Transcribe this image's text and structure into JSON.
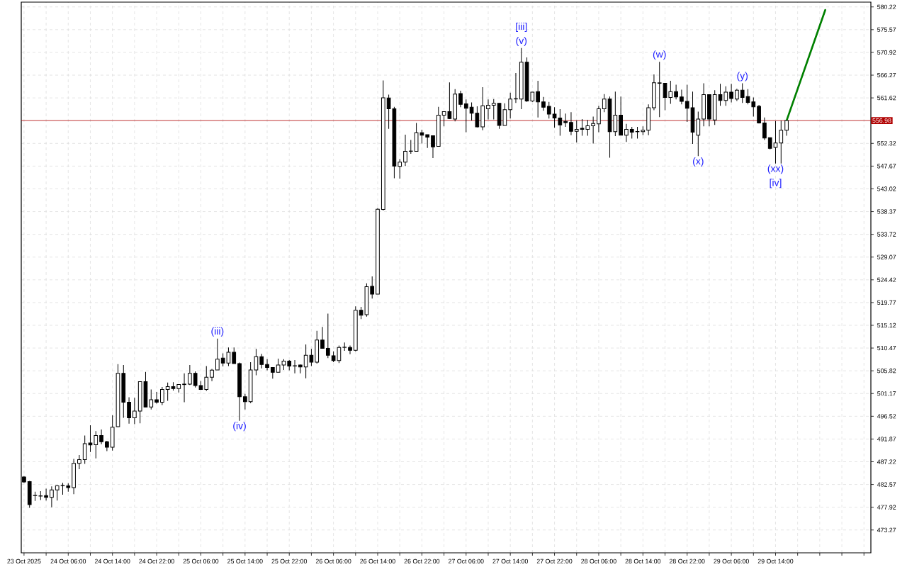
{
  "chart_data": {
    "type": "candlestick",
    "color": "#000000",
    "x": [
      "2025-10-23T22:00",
      "2025-10-23T23:00",
      "2025-10-24T00:00",
      "2025-10-24T01:00",
      "2025-10-24T02:00",
      "2025-10-24T03:00",
      "2025-10-24T04:00",
      "2025-10-24T05:00",
      "2025-10-24T06:00",
      "2025-10-24T07:00",
      "2025-10-24T08:00",
      "2025-10-24T09:00",
      "2025-10-24T10:00",
      "2025-10-24T11:00",
      "2025-10-24T12:00",
      "2025-10-24T13:00",
      "2025-10-24T14:00",
      "2025-10-24T15:00",
      "2025-10-24T16:00",
      "2025-10-24T17:00",
      "2025-10-24T18:00",
      "2025-10-24T19:00",
      "2025-10-24T20:00",
      "2025-10-24T21:00",
      "2025-10-24T22:00",
      "2025-10-24T23:00",
      "2025-10-25T00:00",
      "2025-10-25T01:00",
      "2025-10-25T02:00",
      "2025-10-25T03:00",
      "2025-10-25T04:00",
      "2025-10-25T05:00",
      "2025-10-25T06:00",
      "2025-10-25T07:00",
      "2025-10-25T08:00",
      "2025-10-25T09:00",
      "2025-10-25T10:00",
      "2025-10-25T11:00",
      "2025-10-25T12:00",
      "2025-10-25T13:00",
      "2025-10-25T14:00",
      "2025-10-25T15:00",
      "2025-10-25T16:00",
      "2025-10-25T17:00",
      "2025-10-25T18:00",
      "2025-10-25T19:00",
      "2025-10-25T20:00",
      "2025-10-25T21:00",
      "2025-10-25T22:00",
      "2025-10-25T23:00",
      "2025-10-26T00:00",
      "2025-10-26T01:00",
      "2025-10-26T02:00",
      "2025-10-26T03:00",
      "2025-10-26T04:00",
      "2025-10-26T05:00",
      "2025-10-26T06:00",
      "2025-10-26T07:00",
      "2025-10-26T08:00",
      "2025-10-26T09:00",
      "2025-10-26T10:00",
      "2025-10-26T11:00",
      "2025-10-26T12:00",
      "2025-10-26T13:00",
      "2025-10-26T14:00",
      "2025-10-26T15:00",
      "2025-10-26T16:00",
      "2025-10-26T17:00",
      "2025-10-26T18:00",
      "2025-10-26T19:00",
      "2025-10-26T20:00",
      "2025-10-26T21:00",
      "2025-10-26T22:00",
      "2025-10-26T23:00",
      "2025-10-27T00:00",
      "2025-10-27T01:00",
      "2025-10-27T02:00",
      "2025-10-27T03:00",
      "2025-10-27T04:00",
      "2025-10-27T05:00",
      "2025-10-27T06:00",
      "2025-10-27T07:00",
      "2025-10-27T08:00",
      "2025-10-27T09:00",
      "2025-10-27T10:00",
      "2025-10-27T11:00",
      "2025-10-27T12:00",
      "2025-10-27T13:00",
      "2025-10-27T14:00",
      "2025-10-27T15:00",
      "2025-10-27T16:00",
      "2025-10-27T17:00",
      "2025-10-27T18:00",
      "2025-10-27T19:00",
      "2025-10-27T20:00",
      "2025-10-27T21:00",
      "2025-10-27T22:00",
      "2025-10-27T23:00",
      "2025-10-28T00:00",
      "2025-10-28T01:00",
      "2025-10-28T02:00",
      "2025-10-28T03:00",
      "2025-10-28T04:00",
      "2025-10-28T05:00",
      "2025-10-28T06:00",
      "2025-10-28T07:00",
      "2025-10-28T08:00",
      "2025-10-28T09:00",
      "2025-10-28T10:00",
      "2025-10-28T11:00",
      "2025-10-28T12:00",
      "2025-10-28T13:00",
      "2025-10-28T14:00",
      "2025-10-28T15:00",
      "2025-10-28T16:00",
      "2025-10-28T17:00",
      "2025-10-28T18:00",
      "2025-10-28T19:00",
      "2025-10-28T20:00",
      "2025-10-28T21:00",
      "2025-10-28T22:00",
      "2025-10-28T23:00",
      "2025-10-29T00:00",
      "2025-10-29T01:00",
      "2025-10-29T02:00",
      "2025-10-29T03:00",
      "2025-10-29T04:00",
      "2025-10-29T05:00",
      "2025-10-29T06:00",
      "2025-10-29T07:00",
      "2025-10-29T08:00",
      "2025-10-29T09:00",
      "2025-10-29T10:00",
      "2025-10-29T11:00",
      "2025-10-29T12:00",
      "2025-10-29T13:00",
      "2025-10-29T14:00",
      "2025-10-29T15:00",
      "2025-10-29T16:00"
    ],
    "ohlc": [
      [
        484.1,
        484.3,
        482.9,
        483.1
      ],
      [
        483.15,
        483.3,
        477.8,
        478.46
      ],
      [
        480.3,
        481.1,
        479.2,
        480.35
      ],
      [
        480.2,
        481.2,
        479.4,
        480.25
      ],
      [
        480.3,
        481.7,
        479.3,
        479.95
      ],
      [
        479.95,
        482.2,
        477.9,
        481.45
      ],
      [
        481.45,
        482.4,
        479.3,
        482.3
      ],
      [
        482.3,
        482.9,
        480.5,
        482.35
      ],
      [
        482.3,
        482.8,
        481.1,
        481.95
      ],
      [
        481.95,
        487.8,
        480.6,
        486.9
      ],
      [
        486.9,
        488.6,
        485.7,
        487.65
      ],
      [
        487.65,
        492.6,
        486.8,
        490.9
      ],
      [
        491.05,
        494.7,
        489.2,
        490.65
      ],
      [
        490.7,
        493.5,
        487.9,
        492.6
      ],
      [
        492.6,
        493.8,
        490.8,
        491.3
      ],
      [
        491.3,
        491.5,
        489.4,
        490.2
      ],
      [
        490.2,
        496.7,
        489.5,
        494.3
      ],
      [
        494.4,
        507.2,
        494.3,
        505.3
      ],
      [
        505.3,
        507.0,
        496.2,
        499.4
      ],
      [
        499.4,
        500.4,
        495.0,
        496.2
      ],
      [
        496.2,
        500.3,
        494.9,
        497.6
      ],
      [
        497.6,
        503.6,
        495.1,
        503.6
      ],
      [
        503.6,
        505.6,
        498.4,
        498.4
      ],
      [
        498.4,
        502.0,
        497.9,
        499.9
      ],
      [
        499.9,
        501.5,
        499.1,
        499.4
      ],
      [
        499.4,
        502.5,
        498.8,
        502.0
      ],
      [
        502.0,
        503.4,
        499.7,
        502.6
      ],
      [
        502.6,
        503.5,
        501.8,
        502.2
      ],
      [
        502.2,
        503.0,
        501.4,
        503.0
      ],
      [
        503.0,
        505.3,
        499.4,
        503.1
      ],
      [
        503.1,
        507.0,
        502.9,
        505.3
      ],
      [
        505.3,
        505.7,
        502.4,
        502.8
      ],
      [
        502.8,
        503.7,
        501.9,
        502.0
      ],
      [
        502.0,
        506.8,
        501.7,
        504.5
      ],
      [
        504.5,
        506.2,
        503.7,
        505.95
      ],
      [
        506.0,
        512.4,
        506.0,
        508.2
      ],
      [
        508.4,
        509.4,
        506.7,
        507.4
      ],
      [
        507.4,
        510.6,
        506.8,
        509.6
      ],
      [
        509.6,
        510.6,
        507.3,
        507.3
      ],
      [
        507.3,
        507.5,
        495.6,
        500.5
      ],
      [
        500.5,
        501.1,
        497.9,
        499.5
      ],
      [
        499.5,
        507.6,
        499.2,
        506.0
      ],
      [
        506.0,
        510.3,
        504.9,
        508.7
      ],
      [
        508.7,
        509.3,
        506.3,
        507.1
      ],
      [
        507.1,
        508.2,
        505.9,
        506.5
      ],
      [
        506.5,
        506.5,
        504.2,
        505.5
      ],
      [
        505.5,
        508.3,
        505.5,
        507.0
      ],
      [
        507.0,
        508.2,
        506.0,
        507.8
      ],
      [
        507.8,
        508.0,
        505.9,
        506.8
      ],
      [
        506.8,
        508.0,
        505.3,
        506.85
      ],
      [
        507.0,
        507.1,
        505.3,
        506.6
      ],
      [
        506.6,
        511.2,
        504.3,
        509.0
      ],
      [
        509.0,
        510.3,
        506.8,
        507.6
      ],
      [
        507.6,
        514.0,
        507.3,
        512.1
      ],
      [
        512.1,
        514.8,
        510.4,
        510.4
      ],
      [
        510.4,
        517.5,
        508.4,
        509.0
      ],
      [
        508.9,
        509.8,
        507.6,
        507.9
      ],
      [
        507.9,
        511.0,
        507.4,
        510.6
      ],
      [
        510.6,
        511.6,
        509.9,
        510.65
      ],
      [
        510.6,
        511.0,
        509.2,
        510.0
      ],
      [
        510.0,
        519.0,
        509.8,
        518.2
      ],
      [
        518.2,
        518.9,
        516.4,
        517.2
      ],
      [
        517.3,
        523.7,
        516.9,
        523.0
      ],
      [
        523.1,
        525.1,
        520.6,
        521.5
      ],
      [
        521.5,
        539.1,
        521.5,
        538.85
      ],
      [
        538.8,
        565.2,
        538.6,
        561.62
      ],
      [
        561.6,
        562.3,
        555.3,
        559.4
      ],
      [
        559.4,
        559.8,
        545.2,
        547.67
      ],
      [
        547.6,
        549.1,
        545.1,
        548.5
      ],
      [
        548.5,
        554.1,
        547.7,
        550.7
      ],
      [
        550.7,
        553.0,
        550.2,
        550.75
      ],
      [
        550.7,
        556.5,
        550.7,
        554.5
      ],
      [
        554.5,
        555.1,
        552.3,
        554.0
      ],
      [
        554.1,
        554.1,
        551.4,
        553.6
      ],
      [
        553.9,
        553.9,
        549.3,
        551.6
      ],
      [
        551.7,
        559.8,
        551.7,
        558.1
      ],
      [
        558.1,
        558.8,
        555.8,
        558.8
      ],
      [
        558.8,
        564.8,
        557.3,
        557.4
      ],
      [
        557.3,
        563.4,
        556.8,
        562.4
      ],
      [
        562.5,
        563.1,
        559.7,
        560.3
      ],
      [
        560.4,
        561.3,
        554.6,
        559.5
      ],
      [
        559.7,
        560.7,
        557.0,
        558.5
      ],
      [
        558.5,
        559.9,
        555.6,
        555.7
      ],
      [
        555.7,
        563.8,
        555.0,
        560.0
      ],
      [
        559.4,
        561.3,
        557.2,
        560.1
      ],
      [
        560.1,
        561.4,
        557.2,
        560.5
      ],
      [
        560.5,
        560.5,
        555.3,
        556.0
      ],
      [
        556.0,
        560.5,
        556.0,
        559.2
      ],
      [
        559.2,
        562.7,
        557.4,
        561.4
      ],
      [
        561.4,
        566.7,
        560.6,
        561.45
      ],
      [
        561.4,
        571.8,
        559.3,
        568.9
      ],
      [
        568.9,
        569.9,
        560.8,
        561.0
      ],
      [
        561.0,
        562.8,
        560.8,
        562.8
      ],
      [
        562.9,
        565.1,
        557.6,
        560.8
      ],
      [
        560.8,
        561.8,
        559.0,
        559.7
      ],
      [
        559.9,
        560.8,
        557.4,
        558.3
      ],
      [
        558.3,
        559.7,
        555.5,
        557.5
      ],
      [
        557.5,
        559.3,
        553.9,
        556.1
      ],
      [
        556.8,
        558.4,
        555.7,
        556.55
      ],
      [
        556.6,
        558.7,
        554.0,
        554.8
      ],
      [
        554.8,
        557.0,
        552.5,
        555.2
      ],
      [
        555.4,
        557.3,
        553.9,
        555.2
      ],
      [
        555.2,
        557.1,
        553.9,
        555.9
      ],
      [
        555.9,
        557.8,
        552.3,
        556.4
      ],
      [
        556.3,
        560.0,
        554.6,
        559.4
      ],
      [
        559.4,
        562.4,
        558.7,
        561.4
      ],
      [
        561.4,
        561.9,
        549.4,
        554.7
      ],
      [
        554.7,
        562.9,
        553.8,
        558.1
      ],
      [
        558.1,
        561.9,
        554.0,
        554.0
      ],
      [
        554.0,
        556.3,
        552.6,
        555.2
      ],
      [
        555.2,
        555.7,
        553.3,
        554.6
      ],
      [
        554.7,
        555.7,
        553.3,
        554.75
      ],
      [
        554.7,
        555.8,
        554.0,
        555.0
      ],
      [
        555.0,
        560.3,
        554.0,
        559.6
      ],
      [
        559.6,
        566.4,
        559.1,
        564.7
      ],
      [
        564.6,
        569.0,
        557.7,
        564.7
      ],
      [
        564.6,
        564.6,
        559.1,
        561.7
      ],
      [
        561.7,
        565.1,
        560.4,
        562.9
      ],
      [
        562.9,
        564.3,
        561.3,
        561.8
      ],
      [
        561.8,
        563.3,
        560.3,
        560.9
      ],
      [
        560.9,
        564.3,
        556.7,
        559.5
      ],
      [
        559.6,
        562.9,
        552.2,
        554.6
      ],
      [
        554.0,
        558.8,
        549.7,
        557.3
      ],
      [
        557.3,
        564.6,
        555.8,
        562.3
      ],
      [
        562.3,
        562.3,
        555.8,
        557.3
      ],
      [
        557.1,
        563.2,
        556.1,
        562.3
      ],
      [
        562.3,
        564.5,
        560.0,
        561.1
      ],
      [
        561.1,
        564.0,
        560.0,
        562.8
      ],
      [
        562.8,
        564.5,
        560.7,
        561.5
      ],
      [
        561.4,
        563.5,
        561.0,
        563.2
      ],
      [
        563.2,
        564.6,
        560.6,
        561.7
      ],
      [
        561.9,
        563.4,
        560.3,
        560.7
      ],
      [
        560.8,
        561.7,
        557.8,
        559.8
      ],
      [
        559.9,
        560.2,
        556.4,
        556.5
      ],
      [
        556.5,
        557.6,
        553.0,
        553.4
      ],
      [
        553.5,
        553.5,
        551.1,
        551.3
      ],
      [
        551.5,
        556.9,
        548.2,
        552.4
      ],
      [
        552.4,
        557.0,
        548.2,
        555.0
      ],
      [
        555.0,
        556.98,
        553.9,
        556.98
      ]
    ],
    "series": [
      {
        "type": "line",
        "color": "#008000",
        "x": [
          "2025-10-29T16:00",
          "2025-10-29T23:00"
        ],
        "values": [
          556.98,
          579.6
        ]
      }
    ],
    "xlim": [
      "2025-10-23T21:30",
      "2025-10-30T07:15"
    ],
    "xticks": [
      {
        "value": "2025-10-23T22:00",
        "label": "23 Oct 2025"
      },
      {
        "value": "2025-10-24T02:00",
        "label": null
      },
      {
        "value": "2025-10-24T06:00",
        "label": "24 Oct 06:00"
      },
      {
        "value": "2025-10-24T10:00",
        "label": null
      },
      {
        "value": "2025-10-24T14:00",
        "label": "24 Oct 14:00"
      },
      {
        "value": "2025-10-24T18:00",
        "label": null
      },
      {
        "value": "2025-10-24T22:00",
        "label": "24 Oct 22:00"
      },
      {
        "value": "2025-10-25T02:00",
        "label": null
      },
      {
        "value": "2025-10-25T06:00",
        "label": "25 Oct 06:00"
      },
      {
        "value": "2025-10-25T10:00",
        "label": null
      },
      {
        "value": "2025-10-25T14:00",
        "label": "25 Oct 14:00"
      },
      {
        "value": "2025-10-25T18:00",
        "label": null
      },
      {
        "value": "2025-10-25T22:00",
        "label": "25 Oct 22:00"
      },
      {
        "value": "2025-10-26T02:00",
        "label": null
      },
      {
        "value": "2025-10-26T06:00",
        "label": "26 Oct 06:00"
      },
      {
        "value": "2025-10-26T10:00",
        "label": null
      },
      {
        "value": "2025-10-26T14:00",
        "label": "26 Oct 14:00"
      },
      {
        "value": "2025-10-26T18:00",
        "label": null
      },
      {
        "value": "2025-10-26T22:00",
        "label": "26 Oct 22:00"
      },
      {
        "value": "2025-10-27T02:00",
        "label": null
      },
      {
        "value": "2025-10-27T06:00",
        "label": "27 Oct 06:00"
      },
      {
        "value": "2025-10-27T10:00",
        "label": null
      },
      {
        "value": "2025-10-27T14:00",
        "label": "27 Oct 14:00"
      },
      {
        "value": "2025-10-27T18:00",
        "label": null
      },
      {
        "value": "2025-10-27T22:00",
        "label": "27 Oct 22:00"
      },
      {
        "value": "2025-10-28T02:00",
        "label": null
      },
      {
        "value": "2025-10-28T06:00",
        "label": "28 Oct 06:00"
      },
      {
        "value": "2025-10-28T10:00",
        "label": null
      },
      {
        "value": "2025-10-28T14:00",
        "label": "28 Oct 14:00"
      },
      {
        "value": "2025-10-28T18:00",
        "label": null
      },
      {
        "value": "2025-10-28T22:00",
        "label": "28 Oct 22:00"
      },
      {
        "value": "2025-10-29T02:00",
        "label": null
      },
      {
        "value": "2025-10-29T06:00",
        "label": "29 Oct 06:00"
      },
      {
        "value": "2025-10-29T10:00",
        "label": null
      },
      {
        "value": "2025-10-29T14:00",
        "label": "29 Oct 14:00"
      },
      {
        "value": "2025-10-29T18:00",
        "label": null
      },
      {
        "value": "2025-10-29T22:00",
        "label": null
      },
      {
        "value": "2025-10-30T02:00",
        "label": null
      },
      {
        "value": "2025-10-30T06:00",
        "label": null
      }
    ],
    "ylim": [
      468.6,
      581.2
    ],
    "yticks": [
      473.27,
      477.92,
      482.57,
      487.22,
      491.87,
      496.52,
      501.17,
      505.82,
      510.47,
      515.12,
      519.77,
      524.42,
      529.07,
      533.72,
      538.37,
      543.02,
      547.67,
      552.32,
      561.62,
      566.27,
      570.92,
      575.57,
      580.22
    ],
    "grid": true,
    "ref_lines": [
      {
        "axis": "y",
        "value": 556.98,
        "label": "556.98",
        "color": "#b00000"
      }
    ],
    "annotations": [
      {
        "text": "(iii)",
        "x": "2025-10-25T09:00",
        "y": 512.4
      },
      {
        "text": "(iv)",
        "x": "2025-10-25T13:00",
        "y": 495.6
      },
      {
        "text": "(v)",
        "x": "2025-10-27T16:00",
        "y": 571.8
      },
      {
        "text": "[iii]",
        "x": "2025-10-27T16:00",
        "y": 571.8
      },
      {
        "text": "(w)",
        "x": "2025-10-28T17:00",
        "y": 569.0
      },
      {
        "text": "(x)",
        "x": "2025-10-29T00:00",
        "y": 549.7
      },
      {
        "text": "(y)",
        "x": "2025-10-29T08:00",
        "y": 564.6
      },
      {
        "text": "(xx)",
        "x": "2025-10-29T14:00",
        "y": 548.2
      },
      {
        "text": "[iv]",
        "x": "2025-10-29T14:00",
        "y": 548.2
      }
    ]
  }
}
